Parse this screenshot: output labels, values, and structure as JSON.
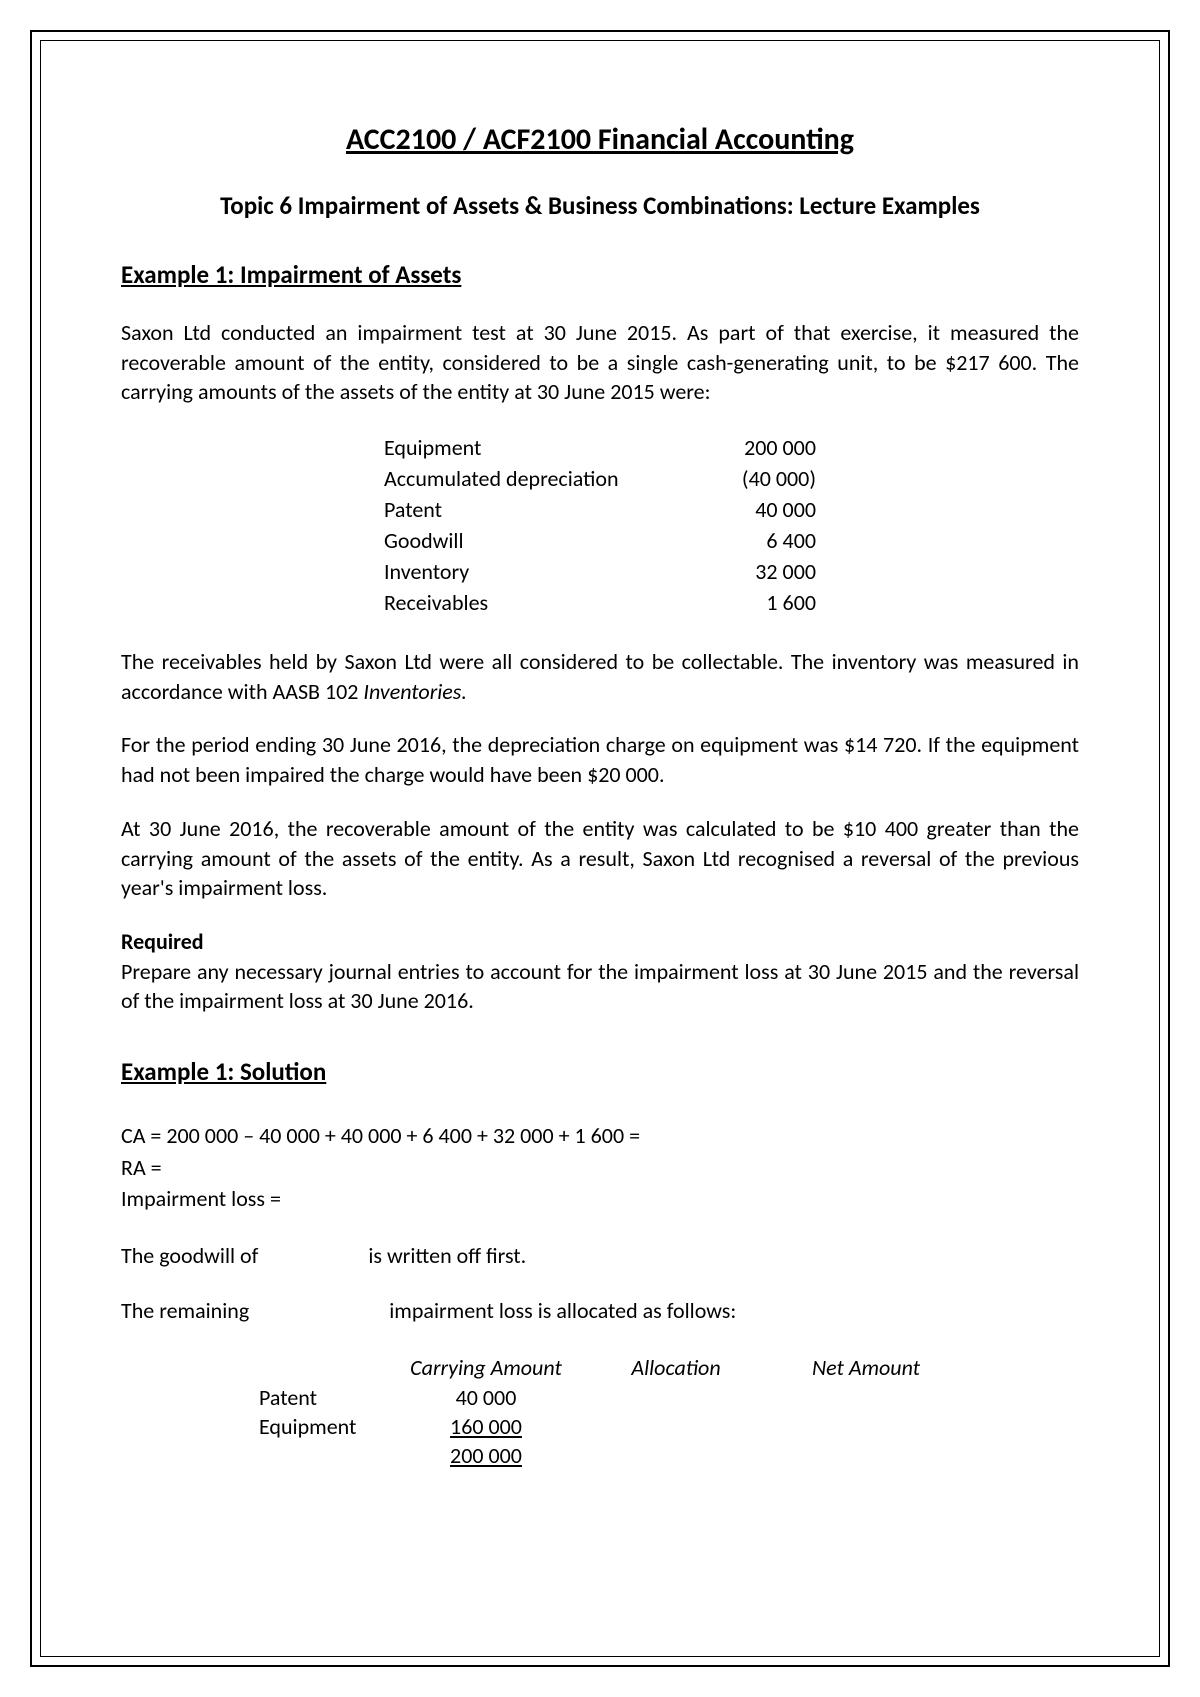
{
  "title": "ACC2100 / ACF2100 Financial Accounting",
  "subtitle": "Topic 6 Impairment of Assets & Business Combinations: Lecture Examples",
  "example1": {
    "heading": "Example 1: Impairment of Assets ",
    "para1": "Saxon Ltd conducted an impairment test at 30 June 2015. As part of that exercise, it measured the recoverable amount of the entity, considered to be a single cash-generating unit, to be $217 600. The carrying amounts of the assets of the entity at 30 June 2015 were:",
    "assets": [
      {
        "label": "Equipment",
        "value": "200 000"
      },
      {
        "label": "Accumulated depreciation",
        "value": "(40 000)"
      },
      {
        "label": "Patent",
        "value": "40 000"
      },
      {
        "label": "Goodwill",
        "value": "6 400"
      },
      {
        "label": "Inventory",
        "value": "32 000"
      },
      {
        "label": "Receivables",
        "value": "1 600"
      }
    ],
    "para2_a": "The receivables held by Saxon Ltd were all considered to be collectable. The inventory was measured in accordance with AASB 102 ",
    "para2_b_italic": "Inventories.",
    "para3": "For the period ending 30 June 2016, the depreciation charge on equipment was $14 720. If the equipment had not been impaired the charge would have been $20 000.",
    "para4": "At 30 June 2016, the recoverable amount of the entity was calculated to be $10 400 greater than the carrying amount of the assets of the entity. As a result, Saxon Ltd recognised a reversal of the previous year's impairment loss.",
    "required_label": "Required",
    "required_text": "Prepare any necessary journal entries to account for the impairment loss at 30 June 2015 and the reversal of the impairment loss at 30 June 2016."
  },
  "solution": {
    "heading": "Example 1: Solution",
    "ca_line": "CA = 200 000 – 40 000 + 40 000 + 6 400 + 32 000 + 1 600 =",
    "ra_line": "RA =",
    "imp_line": "Impairment loss =",
    "goodwill_a": "The goodwill of",
    "goodwill_b": "is written off first.",
    "remaining_a": "The remaining",
    "remaining_b": "impairment loss is allocated as follows:",
    "alloc": {
      "headers": [
        "Carrying Amount",
        "Allocation",
        "Net Amount"
      ],
      "rows": [
        {
          "label": "Patent",
          "carrying": "40 000"
        },
        {
          "label": "Equipment",
          "carrying": "160 000",
          "underline": true
        }
      ],
      "total": "200 000"
    }
  }
}
